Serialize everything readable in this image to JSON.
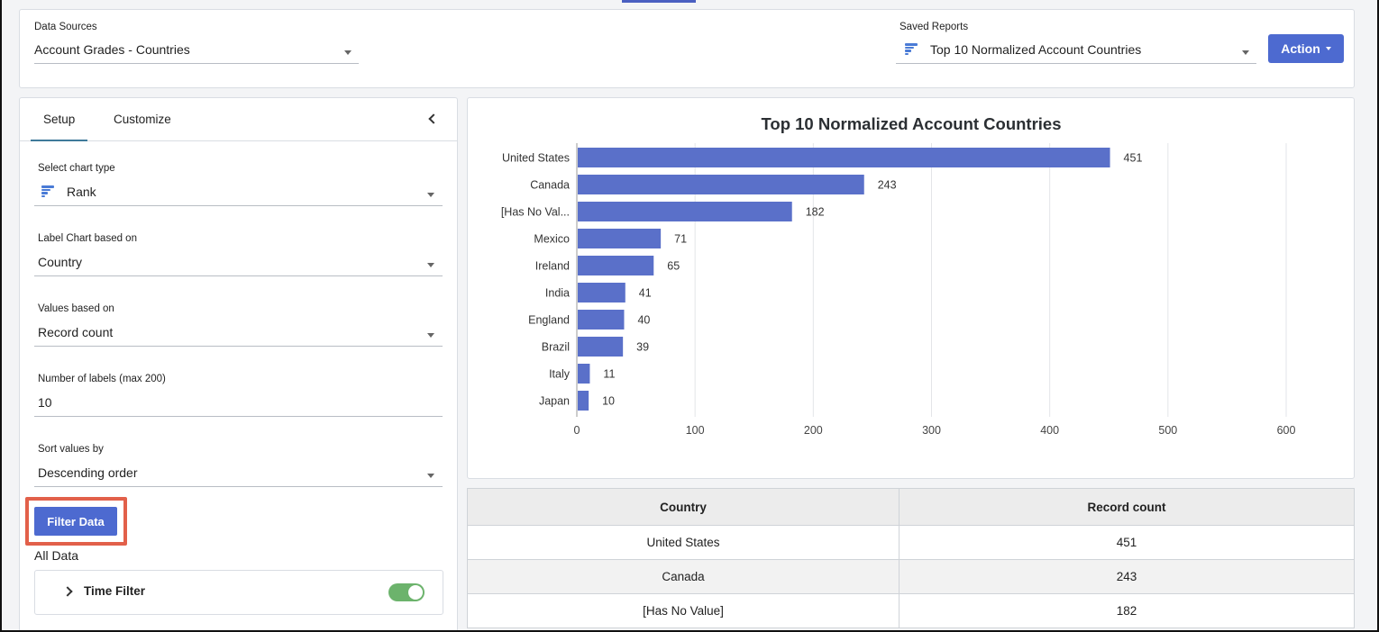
{
  "top": {
    "data_sources_label": "Data Sources",
    "data_source_value": "Account Grades - Countries",
    "saved_reports_label": "Saved Reports",
    "saved_report_value": "Top 10 Normalized Account Countries",
    "action_label": "Action"
  },
  "left": {
    "tabs": [
      {
        "label": "Setup"
      },
      {
        "label": "Customize"
      }
    ],
    "chart_type_label": "Select chart type",
    "chart_type_value": "Rank",
    "label_based_label": "Label Chart based on",
    "label_based_value": "Country",
    "values_based_label": "Values based on",
    "values_based_value": "Record count",
    "num_labels_label": "Number of labels (max 200)",
    "num_labels_value": "10",
    "sort_label": "Sort values by",
    "sort_value": "Descending order",
    "filter_button": "Filter Data",
    "all_data": "All Data",
    "time_filter_label": "Time Filter",
    "time_filter_on": true
  },
  "colors": {
    "bar": "#5a70c9",
    "accent": "#4d6ad0",
    "highlight": "#e2604a",
    "toggle_on": "#6cb36c"
  },
  "chart_data": {
    "type": "bar",
    "orientation": "horizontal",
    "title": "Top 10 Normalized Account Countries",
    "categories": [
      "United States",
      "Canada",
      "[Has No Val...",
      "Mexico",
      "Ireland",
      "India",
      "England",
      "Brazil",
      "Italy",
      "Japan"
    ],
    "values": [
      451,
      243,
      182,
      71,
      65,
      41,
      40,
      39,
      11,
      10
    ],
    "xlim": [
      0,
      600
    ],
    "xticks": [
      "0",
      "100",
      "200",
      "300",
      "400",
      "500",
      "600"
    ],
    "grid": true,
    "xlabel": "",
    "ylabel": ""
  },
  "table": {
    "headers": [
      "Country",
      "Record count"
    ],
    "rows": [
      [
        "United States",
        "451"
      ],
      [
        "Canada",
        "243"
      ],
      [
        "[Has No Value]",
        "182"
      ]
    ]
  }
}
